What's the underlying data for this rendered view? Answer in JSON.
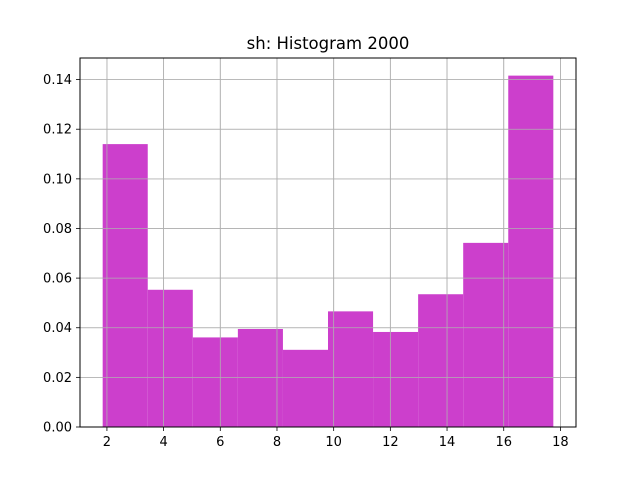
{
  "chart_data": {
    "type": "histogram",
    "title": "sh: Histogram 2000",
    "xlabel": "",
    "ylabel": "",
    "bins": [
      {
        "x0": 1.85,
        "x1": 3.44,
        "value": 0.114
      },
      {
        "x0": 3.44,
        "x1": 5.03,
        "value": 0.0553
      },
      {
        "x0": 5.03,
        "x1": 6.62,
        "value": 0.0361
      },
      {
        "x0": 6.62,
        "x1": 8.21,
        "value": 0.0395
      },
      {
        "x0": 8.21,
        "x1": 9.8,
        "value": 0.0311
      },
      {
        "x0": 9.8,
        "x1": 11.39,
        "value": 0.0466
      },
      {
        "x0": 11.39,
        "x1": 12.98,
        "value": 0.0383
      },
      {
        "x0": 12.98,
        "x1": 14.57,
        "value": 0.0535
      },
      {
        "x0": 14.57,
        "x1": 16.16,
        "value": 0.0742
      },
      {
        "x0": 16.16,
        "x1": 17.75,
        "value": 0.1416
      }
    ],
    "xlim": [
      1.05,
      18.55
    ],
    "ylim": [
      0,
      0.1487
    ],
    "xticks": [
      2,
      4,
      6,
      8,
      10,
      12,
      14,
      16,
      18
    ],
    "yticks": [
      0.0,
      0.02,
      0.04,
      0.06,
      0.08,
      0.1,
      0.12,
      0.14
    ],
    "ytick_labels": [
      "0.00",
      "0.02",
      "0.04",
      "0.06",
      "0.08",
      "0.10",
      "0.12",
      "0.14"
    ],
    "grid": true,
    "bar_color": "#cc3fcc",
    "grid_color": "#b0b0b0"
  }
}
